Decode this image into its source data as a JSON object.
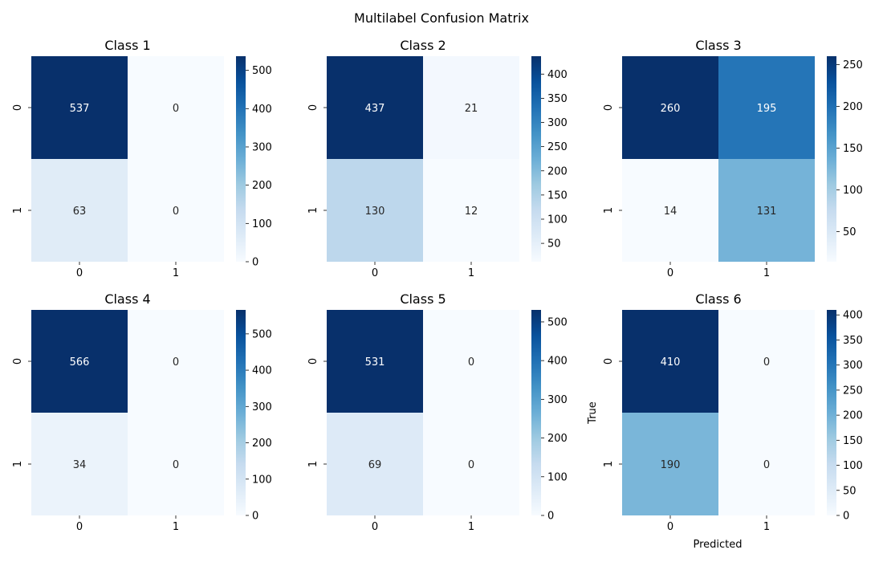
{
  "figure": {
    "title": "Multilabel Confusion Matrix",
    "xlabel": "Predicted",
    "ylabel": "True"
  },
  "chart_data": [
    {
      "type": "heatmap",
      "title": "Class 1",
      "x_ticks": [
        "0",
        "1"
      ],
      "y_ticks": [
        "0",
        "1"
      ],
      "values": [
        [
          537,
          0
        ],
        [
          63,
          0
        ]
      ],
      "colorbar_ticks": [
        0,
        100,
        200,
        300,
        400,
        500
      ],
      "colormap": "Blues"
    },
    {
      "type": "heatmap",
      "title": "Class 2",
      "x_ticks": [
        "0",
        "1"
      ],
      "y_ticks": [
        "0",
        "1"
      ],
      "values": [
        [
          437,
          21
        ],
        [
          130,
          12
        ]
      ],
      "colorbar_ticks": [
        50,
        100,
        150,
        200,
        250,
        300,
        350,
        400
      ],
      "colormap": "Blues"
    },
    {
      "type": "heatmap",
      "title": "Class 3",
      "x_ticks": [
        "0",
        "1"
      ],
      "y_ticks": [
        "0",
        "1"
      ],
      "values": [
        [
          260,
          195
        ],
        [
          14,
          131
        ]
      ],
      "colorbar_ticks": [
        50,
        100,
        150,
        200,
        250
      ],
      "colormap": "Blues"
    },
    {
      "type": "heatmap",
      "title": "Class 4",
      "x_ticks": [
        "0",
        "1"
      ],
      "y_ticks": [
        "0",
        "1"
      ],
      "values": [
        [
          566,
          0
        ],
        [
          34,
          0
        ]
      ],
      "colorbar_ticks": [
        0,
        100,
        200,
        300,
        400,
        500
      ],
      "colormap": "Blues"
    },
    {
      "type": "heatmap",
      "title": "Class 5",
      "x_ticks": [
        "0",
        "1"
      ],
      "y_ticks": [
        "0",
        "1"
      ],
      "values": [
        [
          531,
          0
        ],
        [
          69,
          0
        ]
      ],
      "colorbar_ticks": [
        0,
        100,
        200,
        300,
        400,
        500
      ],
      "colormap": "Blues"
    },
    {
      "type": "heatmap",
      "title": "Class 6",
      "x_ticks": [
        "0",
        "1"
      ],
      "y_ticks": [
        "0",
        "1"
      ],
      "values": [
        [
          410,
          0
        ],
        [
          190,
          0
        ]
      ],
      "colorbar_ticks": [
        0,
        50,
        100,
        150,
        200,
        250,
        300,
        350,
        400
      ],
      "colormap": "Blues"
    }
  ]
}
